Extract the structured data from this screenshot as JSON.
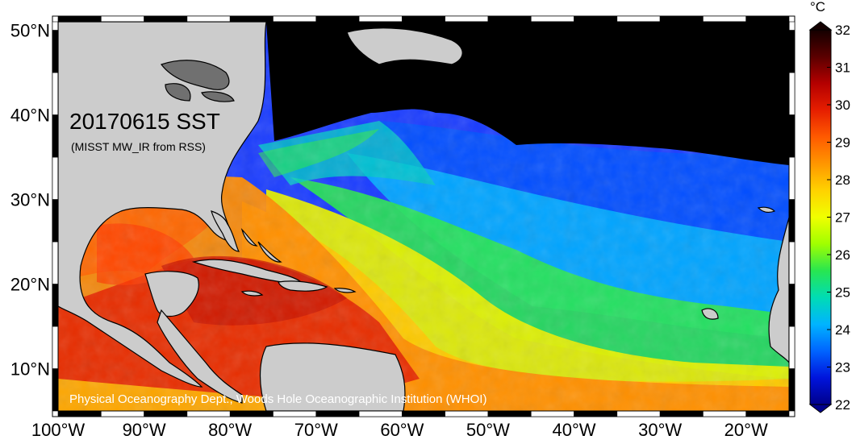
{
  "map": {
    "title": "20170615 SST",
    "subtitle": "(MISST MW_IR from RSS)",
    "credit": "Physical Oceanography Dept., Woods Hole Oceanographic Institution (WHOI)",
    "lon_labels": [
      "100°W",
      "90°W",
      "80°W",
      "70°W",
      "60°W",
      "50°W",
      "40°W",
      "30°W",
      "20°W"
    ],
    "lat_labels": [
      "50°N",
      "40°N",
      "30°N",
      "20°N",
      "10°N"
    ],
    "lon_range": [
      -100,
      -15
    ],
    "lat_range": [
      5,
      51
    ]
  },
  "colorbar": {
    "unit": "°C",
    "ticks": [
      "32",
      "31",
      "30",
      "29",
      "28",
      "27",
      "26",
      "25",
      "24",
      "23",
      "22"
    ],
    "min": 22,
    "max": 32,
    "colors": [
      "#140000",
      "#5a0000",
      "#b40000",
      "#e61e00",
      "#ff5a00",
      "#ff9600",
      "#ffd200",
      "#f0ff00",
      "#a0ff00",
      "#28e650",
      "#00dcb4",
      "#00b4ff",
      "#0064ff",
      "#0014dc",
      "#00008c"
    ]
  },
  "colors": {
    "land": "#cccccc",
    "no_data": "#000000",
    "coast": "#000000"
  }
}
